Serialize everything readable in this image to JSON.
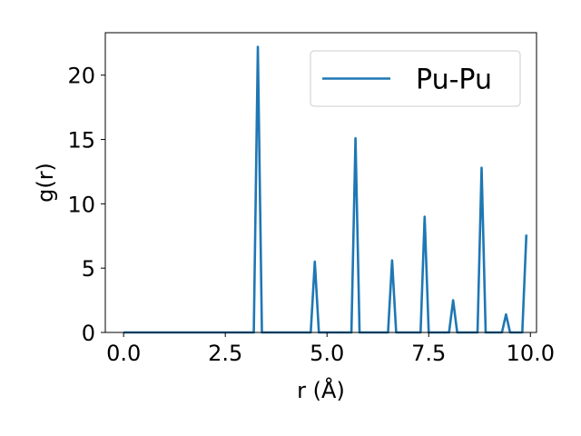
{
  "chart_data": {
    "type": "line",
    "xlabel": "r (Å)",
    "ylabel": "g(r)",
    "xlim": [
      -0.45,
      10.15
    ],
    "ylim": [
      0,
      23.3
    ],
    "x_ticks": [
      0.0,
      2.5,
      5.0,
      7.5,
      10.0
    ],
    "x_tick_labels": [
      "0.0",
      "2.5",
      "5.0",
      "7.5",
      "10.0"
    ],
    "y_ticks": [
      0,
      5,
      10,
      15,
      20
    ],
    "y_tick_labels": [
      "0",
      "5",
      "10",
      "15",
      "20"
    ],
    "grid": false,
    "legend_position": "top-right",
    "series": [
      {
        "name": "Pu-Pu",
        "color": "#1f77b4",
        "x": [
          0.0,
          3.2,
          3.3,
          3.4,
          4.6,
          4.7,
          4.8,
          5.6,
          5.7,
          5.8,
          6.5,
          6.6,
          6.7,
          7.3,
          7.4,
          7.5,
          8.0,
          8.1,
          8.2,
          8.7,
          8.8,
          8.9,
          9.3,
          9.4,
          9.5,
          9.8,
          9.9
        ],
        "y": [
          0,
          0,
          22.2,
          0,
          0,
          5.5,
          0,
          0,
          15.1,
          0,
          0,
          5.6,
          0,
          0,
          9.0,
          0,
          0,
          2.5,
          0,
          0,
          12.8,
          0,
          0,
          1.4,
          0,
          0,
          7.6
        ]
      }
    ]
  }
}
